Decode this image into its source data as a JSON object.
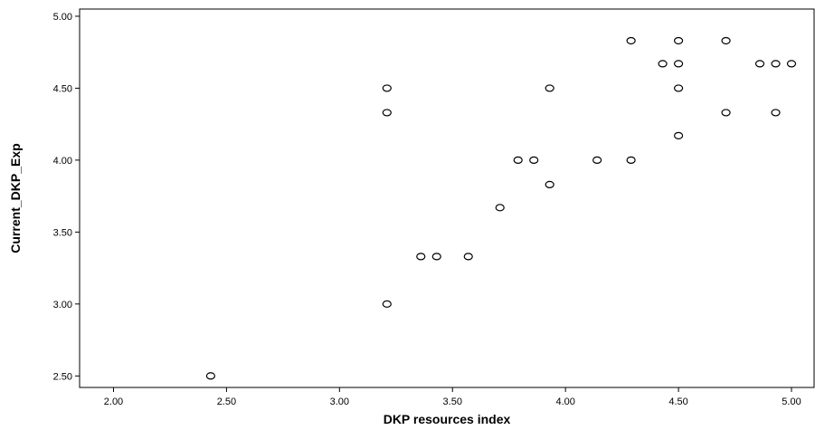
{
  "chart_data": {
    "type": "scatter",
    "xlabel": "DKP resources index",
    "ylabel": "Current_DKP_Exp",
    "xlim": [
      1.85,
      5.1
    ],
    "ylim": [
      2.42,
      5.05
    ],
    "x_ticks": [
      "2.00",
      "2.50",
      "3.00",
      "3.50",
      "4.00",
      "4.50",
      "5.00"
    ],
    "y_ticks": [
      "2.50",
      "3.00",
      "3.50",
      "4.00",
      "4.50",
      "5.00"
    ],
    "grid": false,
    "marker": "open-circle",
    "colors": {
      "point_stroke": "#000000",
      "point_fill": "#ffffff",
      "axis": "#000000",
      "background": "#ffffff"
    },
    "points": [
      {
        "x": 2.43,
        "y": 2.5
      },
      {
        "x": 3.21,
        "y": 3.0
      },
      {
        "x": 3.21,
        "y": 4.33
      },
      {
        "x": 3.21,
        "y": 4.5
      },
      {
        "x": 3.36,
        "y": 3.33
      },
      {
        "x": 3.43,
        "y": 3.33
      },
      {
        "x": 3.57,
        "y": 3.33
      },
      {
        "x": 3.71,
        "y": 3.67
      },
      {
        "x": 3.79,
        "y": 4.0
      },
      {
        "x": 3.86,
        "y": 4.0
      },
      {
        "x": 3.93,
        "y": 3.83
      },
      {
        "x": 3.93,
        "y": 4.5
      },
      {
        "x": 4.14,
        "y": 4.0
      },
      {
        "x": 4.29,
        "y": 4.0
      },
      {
        "x": 4.29,
        "y": 4.83
      },
      {
        "x": 4.43,
        "y": 4.67
      },
      {
        "x": 4.5,
        "y": 4.17
      },
      {
        "x": 4.5,
        "y": 4.5
      },
      {
        "x": 4.5,
        "y": 4.67
      },
      {
        "x": 4.5,
        "y": 4.83
      },
      {
        "x": 4.71,
        "y": 4.33
      },
      {
        "x": 4.71,
        "y": 4.83
      },
      {
        "x": 4.86,
        "y": 4.67
      },
      {
        "x": 4.93,
        "y": 4.33
      },
      {
        "x": 4.93,
        "y": 4.67
      },
      {
        "x": 5.0,
        "y": 4.67
      }
    ]
  }
}
